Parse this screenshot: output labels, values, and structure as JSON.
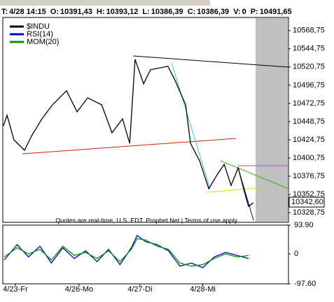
{
  "info_bar": [
    {
      "label": "T:",
      "value": "4/28 14:15"
    },
    {
      "label": "O:",
      "value": "10391,43"
    },
    {
      "label": "H:",
      "value": "10393,12"
    },
    {
      "label": "L:",
      "value": "10386,39"
    },
    {
      "label": "C:",
      "value": "10386,39"
    },
    {
      "label": "V:",
      "value": "0"
    },
    {
      "label": "P:",
      "value": "10491,65"
    }
  ],
  "footer": "Quotes are real-time, U.S. EDT. Prophet.Net | Terms of use apply.",
  "chart_data": {
    "type": "line",
    "xlim": [
      0,
      100
    ],
    "xticks": [
      {
        "value": 4.4,
        "label": "4/23-Fr"
      },
      {
        "value": 26.7,
        "label": "4/26-Mo"
      },
      {
        "value": 48,
        "label": "4/27-Di"
      },
      {
        "value": 70,
        "label": "4/28-Mi"
      }
    ],
    "ylim": [
      10316,
      10586
    ],
    "yticks": [
      {
        "value": 10568.75,
        "label": "10568,75"
      },
      {
        "value": 10544.75,
        "label": "10544,75"
      },
      {
        "value": 10520.75,
        "label": "10520,75"
      },
      {
        "value": 10496.75,
        "label": "10496,75"
      },
      {
        "value": 10472.75,
        "label": "10472,75"
      },
      {
        "value": 10448.75,
        "label": "10448,75"
      },
      {
        "value": 10424.75,
        "label": "10424,75"
      },
      {
        "value": 10400.75,
        "label": "10400,75"
      },
      {
        "value": 10376.75,
        "label": "10376,75"
      },
      {
        "value": 10352.75,
        "label": "10352,75"
      },
      {
        "value": 10328.75,
        "label": "10328,75"
      }
    ],
    "last_price": {
      "value": 10342.6,
      "label": "10342,60"
    },
    "y2lim": [
      -97.6,
      93.9
    ],
    "y2ticks": [
      {
        "value": 93.9,
        "label": "93.90"
      },
      0,
      {
        "value": -97.6,
        "label": "-97.60"
      }
    ],
    "series": [
      {
        "name": "$INDU",
        "color": "#000000",
        "x": [
          0.2,
          1.5,
          3.9,
          7.6,
          10,
          13.7,
          17.4,
          22.3,
          26,
          29.7,
          34.6,
          38.2,
          41.9,
          44.4,
          46.3,
          49.3,
          51.7,
          57.8,
          60.3,
          64,
          65.7,
          68.9,
          72.1,
          75,
          77.5,
          79.9,
          82.4,
          84.3,
          86,
          87.7
        ],
        "values": [
          10443.2,
          10457.1,
          10424.7,
          10410.9,
          10429.4,
          10452.4,
          10470.9,
          10489.4,
          10461.7,
          10480.1,
          10470.9,
          10434,
          10452.4,
          10420.1,
          10530.9,
          10498.6,
          10517.1,
          10521.7,
          10503.2,
          10470.9,
          10420.1,
          10397,
          10360.1,
          10378.6,
          10392.4,
          10364.7,
          10387.8,
          10360.1,
          10337,
          10341.6
        ]
      },
      {
        "name": "RSI(14)",
        "color": "#0000cc",
        "axis": "y2",
        "x": [
          0.5,
          5,
          9,
          13,
          17,
          21,
          25,
          29,
          33,
          37,
          41,
          45,
          47,
          50,
          54,
          58,
          62,
          66,
          70,
          74,
          78,
          82,
          86
        ],
        "values": [
          -20,
          30,
          -10,
          25,
          -30,
          20,
          -15,
          10,
          -25,
          15,
          -35,
          20,
          60,
          40,
          30,
          10,
          -40,
          -30,
          -45,
          -10,
          5,
          -5,
          -15
        ]
      },
      {
        "name": "MOM(20)",
        "color": "#009900",
        "axis": "y2",
        "x": [
          0.5,
          5,
          9,
          13,
          17,
          21,
          25,
          29,
          33,
          37,
          41,
          45,
          47,
          50,
          54,
          58,
          62,
          66,
          70,
          74,
          78,
          82,
          86
        ],
        "values": [
          -10,
          20,
          0,
          15,
          -20,
          25,
          -5,
          5,
          -15,
          10,
          -25,
          15,
          50,
          45,
          25,
          15,
          -30,
          -40,
          -35,
          -15,
          0,
          -10,
          -5
        ]
      }
    ]
  }
}
